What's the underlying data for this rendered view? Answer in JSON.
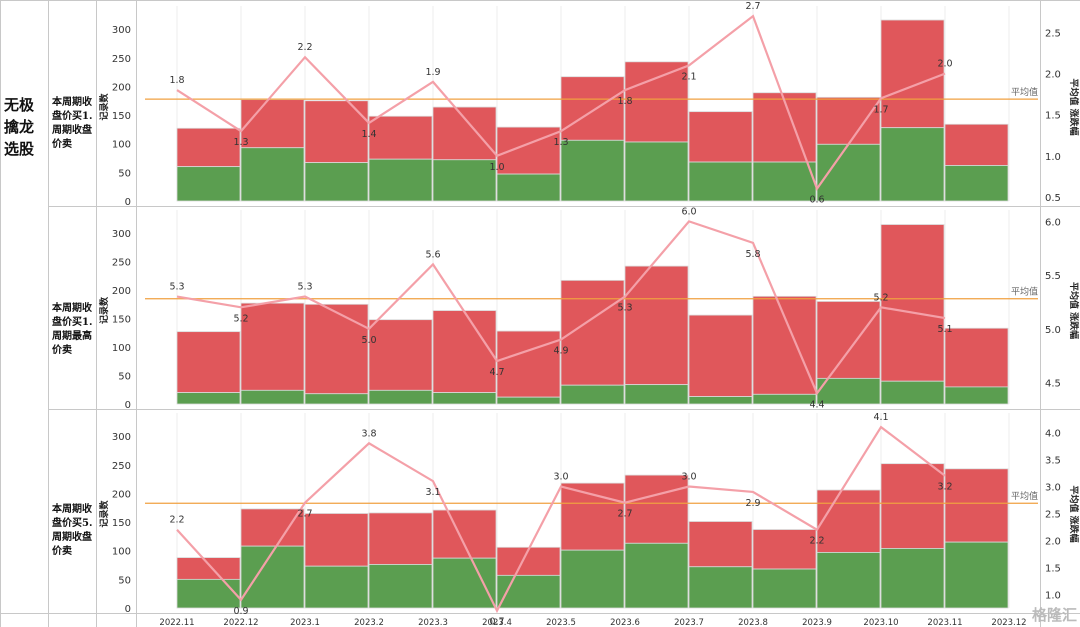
{
  "strategy_title": "无极擒龙选股",
  "rows": [
    {
      "label": "本周期收盘价买1.周期收盘价卖"
    },
    {
      "label": "本周期收盘价买1.周期最高价卖"
    },
    {
      "label": "本周期收盘价买5.周期收盘价卖"
    }
  ],
  "watermark": "格隆汇",
  "colors": {
    "loss": "#e0575b",
    "win": "#5b9e50",
    "line": "#f4a0a8",
    "avg": "#f0a040"
  },
  "chart_data": [
    {
      "type": "bar",
      "categories": [
        "2022.11",
        "2022.12",
        "2023.1",
        "2023.2",
        "2023.3",
        "2023.4",
        "2023.5",
        "2023.6",
        "2023.7",
        "2023.8",
        "2023.9",
        "2023.10",
        "2023.11"
      ],
      "ylabel": "记录数",
      "y2label": "平均值 涨跌幅",
      "ylim": [
        0,
        330
      ],
      "yticks": [
        0,
        50,
        100,
        150,
        200,
        250,
        300
      ],
      "y2lim": [
        0.45,
        2.75
      ],
      "y2ticks": [
        "0.5",
        "1.0",
        "1.5",
        "2.0",
        "2.5"
      ],
      "stacked": true,
      "series": [
        {
          "values": [
            60,
            93,
            67,
            73,
            72,
            47,
            106,
            103,
            68,
            68,
            99,
            128,
            62
          ]
        },
        {
          "values": [
            67,
            84,
            108,
            75,
            92,
            82,
            111,
            140,
            88,
            121,
            82,
            188,
            72
          ]
        }
      ],
      "line_series": {
        "values": [
          1.8,
          1.3,
          2.2,
          1.4,
          1.9,
          1.0,
          1.3,
          1.8,
          2.1,
          2.7,
          0.6,
          1.7,
          2.0
        ],
        "labels": [
          "1.8",
          "1.3",
          "2.2",
          "1.4",
          "1.9",
          "1.0",
          "1.3",
          "1.8",
          "2.1",
          "2.7",
          "0.6",
          "1.7",
          "2.0"
        ]
      },
      "average": {
        "label": "平均值",
        "value": 1.69
      }
    },
    {
      "type": "bar",
      "categories": [
        "2022.11",
        "2022.12",
        "2023.1",
        "2023.2",
        "2023.3",
        "2023.4",
        "2023.5",
        "2023.6",
        "2023.7",
        "2023.8",
        "2023.9",
        "2023.10",
        "2023.11"
      ],
      "ylabel": "记录数",
      "y2label": "平均值 涨跌幅",
      "ylim": [
        0,
        330
      ],
      "yticks": [
        0,
        50,
        100,
        150,
        200,
        250,
        300
      ],
      "y2lim": [
        4.3,
        6.05
      ],
      "y2ticks": [
        "4.5",
        "5.0",
        "5.5",
        "6.0"
      ],
      "stacked": true,
      "series": [
        {
          "values": [
            20,
            24,
            18,
            24,
            20,
            12,
            33,
            34,
            13,
            17,
            45,
            40,
            30
          ]
        },
        {
          "values": [
            107,
            153,
            157,
            124,
            144,
            116,
            184,
            208,
            143,
            172,
            135,
            275,
            103
          ]
        }
      ],
      "line_series": {
        "values": [
          5.3,
          5.2,
          5.3,
          5.0,
          5.6,
          4.7,
          4.9,
          5.3,
          6.0,
          5.8,
          4.4,
          5.2,
          5.1
        ],
        "labels": [
          "5.3",
          "5.2",
          "5.3",
          "5.0",
          "5.6",
          "4.7",
          "4.9",
          "5.3",
          "6.0",
          "5.8",
          "4.4",
          "5.2",
          "5.1"
        ]
      },
      "average": {
        "label": "平均值",
        "value": 5.28
      }
    },
    {
      "type": "bar",
      "categories": [
        "2022.11",
        "2022.12",
        "2023.1",
        "2023.2",
        "2023.3",
        "2023.4",
        "2023.5",
        "2023.6",
        "2023.7",
        "2023.8",
        "2023.9",
        "2023.10",
        "2023.11"
      ],
      "ylabel": "记录数",
      "y2label": "平均值 涨跌幅",
      "ylim": [
        0,
        330
      ],
      "yticks": [
        0,
        50,
        100,
        150,
        200,
        250,
        300
      ],
      "y2lim": [
        0.75,
        4.25
      ],
      "y2ticks": [
        "1.0",
        "1.5",
        "2.0",
        "2.5",
        "3.0",
        "3.5",
        "4.0"
      ],
      "stacked": true,
      "series": [
        {
          "values": [
            50,
            108,
            73,
            76,
            87,
            57,
            101,
            113,
            72,
            68,
            97,
            104,
            115
          ]
        },
        {
          "values": [
            38,
            65,
            92,
            90,
            84,
            49,
            117,
            119,
            79,
            69,
            109,
            148,
            128
          ]
        }
      ],
      "line_series": {
        "values": [
          2.2,
          0.9,
          2.7,
          3.8,
          3.1,
          0.7,
          3.0,
          2.7,
          3.0,
          2.9,
          2.2,
          4.1,
          3.2
        ],
        "labels": [
          "2.2",
          "0.9",
          "2.7",
          "3.8",
          "3.1",
          "0.7",
          "3.0",
          "2.7",
          "3.0",
          "2.9",
          "2.2",
          "4.1",
          "3.2"
        ]
      },
      "average": {
        "label": "平均值",
        "value": 2.69
      }
    }
  ],
  "x_axis_labels": [
    "2022.11",
    "2022.12",
    "2023.1",
    "2023.2",
    "2023.3",
    "2023.4",
    "2023.5",
    "2023.6",
    "2023.7",
    "2023.8",
    "2023.9",
    "2023.10",
    "2023.11",
    "2023.12"
  ]
}
